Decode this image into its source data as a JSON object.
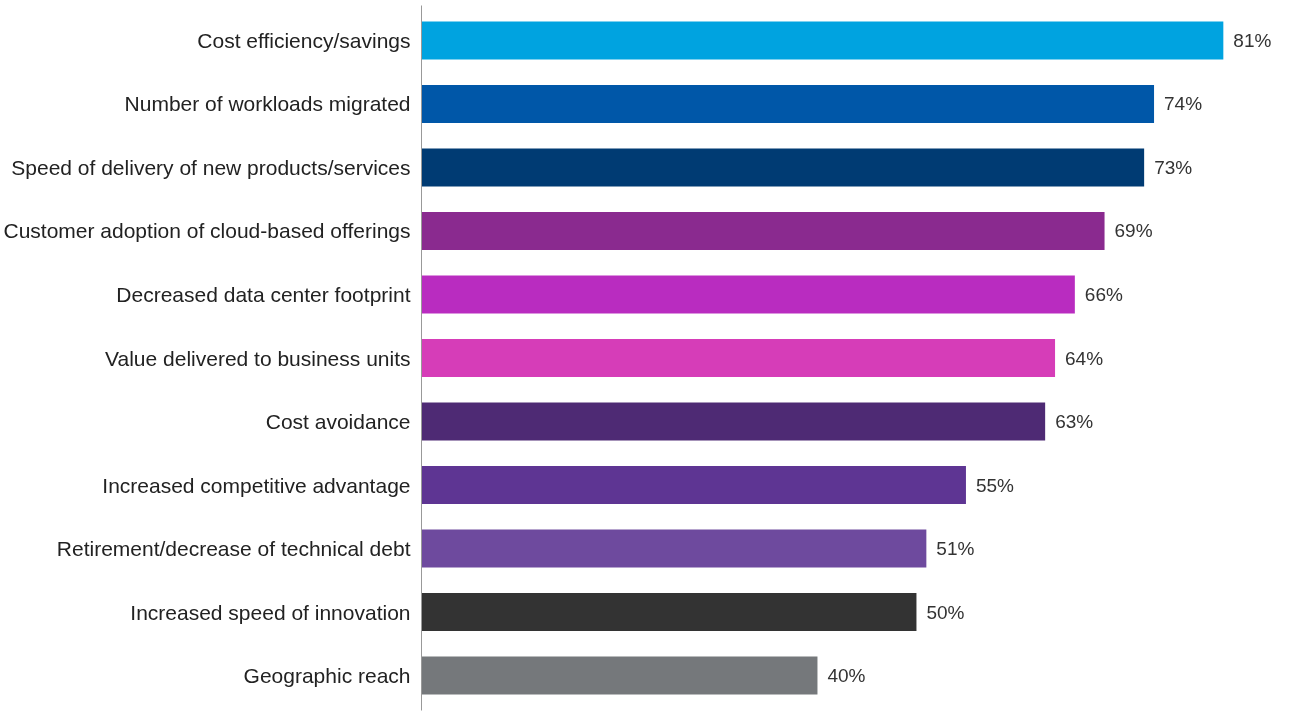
{
  "chart_data": {
    "type": "bar",
    "orientation": "horizontal",
    "categories": [
      "Cost efficiency/savings",
      "Number of workloads migrated",
      "Speed of delivery of new products/services",
      "Customer adoption of cloud-based offerings",
      "Decreased data center footprint",
      "Value delivered to business units",
      "Cost avoidance",
      "Increased competitive advantage",
      "Retirement/decrease of technical debt",
      "Increased speed of innovation",
      "Geographic reach"
    ],
    "values": [
      81,
      74,
      73,
      69,
      66,
      64,
      63,
      55,
      51,
      50,
      40
    ],
    "value_labels": [
      "81%",
      "74%",
      "73%",
      "69%",
      "66%",
      "64%",
      "63%",
      "55%",
      "51%",
      "50%",
      "40%"
    ],
    "colors": [
      "#00a3e0",
      "#0057a8",
      "#003b73",
      "#8a2a8f",
      "#b92cc0",
      "#d63db8",
      "#4e2a74",
      "#5e3593",
      "#6e4a9e",
      "#333333",
      "#75787b"
    ],
    "grid": false,
    "tick_labels": "y"
  }
}
